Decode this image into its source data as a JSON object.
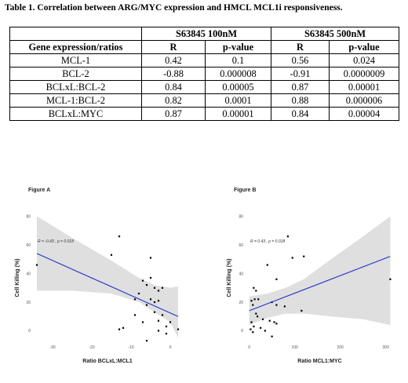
{
  "caption": "Table 1. Correlation between ARG/MYC expression and HMCL MCL1i responsiveness.",
  "table": {
    "group_headers": [
      "S63845 100nM",
      "S63845 500nM"
    ],
    "col_headers": [
      "Gene expression/ratios",
      "R",
      "p-value",
      "R",
      "p-value"
    ],
    "rows": [
      [
        "MCL-1",
        "0.42",
        "0.1",
        "0.56",
        "0.024"
      ],
      [
        "BCL-2",
        "-0.88",
        "0.000008",
        "-0.91",
        "0.0000009"
      ],
      [
        "BCLxL:BCL-2",
        "0.84",
        "0.00005",
        "0.87",
        "0.00001"
      ],
      [
        "MCL-1:BCL-2",
        "0.82",
        "0.0001",
        "0.88",
        "0.000006"
      ],
      [
        "BCLxL:MYC",
        "0.87",
        "0.00001",
        "0.84",
        "0.00004"
      ]
    ]
  },
  "chart_data": [
    {
      "type": "scatter",
      "title": "Figure A",
      "xlabel": "Ratio BCLxL:MCL1",
      "ylabel": "Cell Killing (%)",
      "xlim": [
        -35,
        3
      ],
      "ylim": [
        -8,
        82
      ],
      "xticks": [
        -30,
        -20,
        -10,
        0
      ],
      "yticks": [
        0,
        20,
        40,
        60,
        80
      ],
      "annotation": "R = -0.43 , p = 0.018",
      "line_color": "#2233cc",
      "band_color": "#d9d9d9",
      "fit": {
        "x": [
          -34,
          2
        ],
        "y": [
          54,
          10
        ]
      },
      "band": {
        "x": [
          -34,
          -25,
          -15,
          -8,
          -4,
          0,
          2
        ],
        "upper": [
          80,
          65,
          49,
          37,
          32,
          30,
          31
        ],
        "lower": [
          28,
          28,
          26,
          20,
          13,
          6,
          -5
        ]
      },
      "points": [
        [
          -34,
          46
        ],
        [
          -13,
          66
        ],
        [
          -15,
          53
        ],
        [
          -5,
          51
        ],
        [
          -6,
          32
        ],
        [
          -5,
          37
        ],
        [
          -7,
          35
        ],
        [
          -4,
          30
        ],
        [
          -3,
          28
        ],
        [
          -2,
          30
        ],
        [
          -8,
          26
        ],
        [
          -9,
          22
        ],
        [
          -5,
          22
        ],
        [
          -4,
          20
        ],
        [
          -3,
          21
        ],
        [
          -6,
          18
        ],
        [
          -9,
          11
        ],
        [
          -4,
          13
        ],
        [
          -2,
          11
        ],
        [
          0,
          6
        ],
        [
          -1,
          3
        ],
        [
          -7,
          6
        ],
        [
          -3,
          7
        ],
        [
          -13,
          1
        ],
        [
          -12,
          2
        ],
        [
          -3,
          0
        ],
        [
          -1,
          -2
        ],
        [
          -6,
          -7
        ],
        [
          2,
          1
        ]
      ]
    },
    {
      "type": "scatter",
      "title": "Figure B",
      "xlabel": "Ratio MCL1:MYC",
      "ylabel": "Cell Killing (%)",
      "xlim": [
        -8,
        318
      ],
      "ylim": [
        -8,
        82
      ],
      "xticks": [
        0,
        100,
        200,
        300
      ],
      "yticks": [
        0,
        20,
        40,
        60,
        80
      ],
      "annotation": "R = 0.43 , p = 0.018",
      "line_color": "#2233cc",
      "band_color": "#d9d9d9",
      "fit": {
        "x": [
          0,
          310
        ],
        "y": [
          14,
          52
        ]
      },
      "band": {
        "x": [
          0,
          40,
          80,
          120,
          180,
          250,
          310
        ],
        "upper": [
          24,
          26,
          30,
          36,
          50,
          66,
          80
        ],
        "lower": [
          4,
          9,
          12,
          12,
          10,
          8,
          4
        ]
      },
      "points": [
        [
          85,
          66
        ],
        [
          120,
          52
        ],
        [
          95,
          51
        ],
        [
          40,
          46
        ],
        [
          60,
          36
        ],
        [
          10,
          30
        ],
        [
          15,
          28
        ],
        [
          12,
          22
        ],
        [
          5,
          21
        ],
        [
          8,
          18
        ],
        [
          20,
          22
        ],
        [
          50,
          20
        ],
        [
          60,
          18
        ],
        [
          78,
          17
        ],
        [
          115,
          14
        ],
        [
          310,
          36
        ],
        [
          30,
          8
        ],
        [
          45,
          7
        ],
        [
          55,
          6
        ],
        [
          60,
          5
        ],
        [
          5,
          6
        ],
        [
          10,
          3
        ],
        [
          25,
          2
        ],
        [
          35,
          0
        ],
        [
          3,
          1
        ],
        [
          8,
          -1
        ],
        [
          50,
          -4
        ],
        [
          15,
          12
        ],
        [
          18,
          10
        ]
      ]
    }
  ]
}
